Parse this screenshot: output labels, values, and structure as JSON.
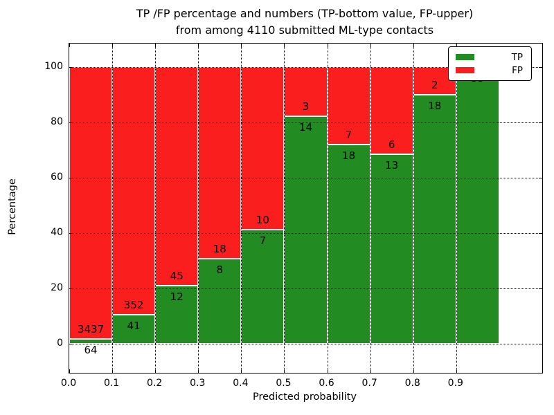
{
  "title": {
    "line1": "TP /FP percentage and numbers (TP-bottom value, FP-upper)",
    "line2": "from among 4110 submitted ML-type contacts"
  },
  "axes": {
    "xlabel": "Predicted probability",
    "ylabel": "Percentage",
    "xtick_labels": [
      "0.0",
      "0.1",
      "0.2",
      "0.3",
      "0.4",
      "0.5",
      "0.6",
      "0.7",
      "0.8",
      "0.9"
    ],
    "xtick_values": [
      0.0,
      0.1,
      0.2,
      0.3,
      0.4,
      0.5,
      0.6,
      0.7,
      0.8,
      0.9
    ],
    "ytick_labels": [
      "0",
      "20",
      "40",
      "60",
      "80",
      "100"
    ],
    "ytick_values": [
      0,
      20,
      40,
      60,
      80,
      100
    ]
  },
  "legend": {
    "items": [
      {
        "label": "TP",
        "color": "#228B22"
      },
      {
        "label": "FP",
        "color": "#FA1E1E"
      }
    ]
  },
  "chart_data": {
    "type": "bar",
    "variant": "stacked-percentage-histogram",
    "title": "TP /FP percentage and numbers (TP-bottom value, FP-upper) from among 4110 submitted ML-type contacts",
    "xlabel": "Predicted probability",
    "ylabel": "Percentage",
    "xlim": [
      0,
      1.1
    ],
    "ylim": [
      -10.5,
      108.5
    ],
    "grid": "dotted black, both axes, drawn over bars",
    "legend_position": "upper-right",
    "bin_edges": [
      0.0,
      0.1,
      0.2,
      0.3,
      0.4,
      0.5,
      0.6,
      0.7,
      0.8,
      0.9,
      1.0
    ],
    "series": [
      {
        "name": "TP",
        "color": "#228B22",
        "counts": [
          64,
          41,
          12,
          8,
          7,
          14,
          18,
          13,
          18,
          35
        ]
      },
      {
        "name": "FP",
        "color": "#FA1E1E",
        "counts": [
          3437,
          352,
          45,
          18,
          10,
          3,
          7,
          6,
          2,
          0
        ]
      }
    ],
    "tp_percent": [
      1.8,
      10.4,
      21.1,
      30.8,
      41.2,
      82.4,
      72.0,
      68.4,
      90.0,
      100.0
    ],
    "bar_count_labels": {
      "tp": [
        "64",
        "41",
        "12",
        "8",
        "7",
        "14",
        "18",
        "13",
        "18",
        "35"
      ],
      "fp": [
        "3437",
        "352",
        "45",
        "18",
        "10",
        "3",
        "7",
        "6",
        "2",
        ""
      ]
    },
    "total_contacts": 4110
  }
}
